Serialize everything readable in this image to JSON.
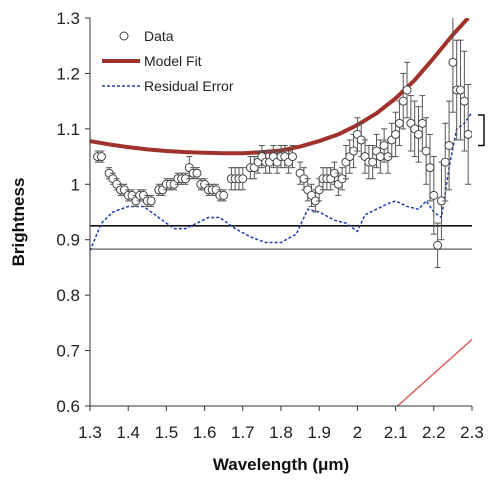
{
  "chart_data": {
    "type": "line",
    "xlabel": "Wavelength (μm)",
    "ylabel": "Brightness",
    "xlim": [
      1.3,
      2.3
    ],
    "ylim": [
      0.6,
      1.3
    ],
    "x_ticks": [
      1.3,
      1.4,
      1.5,
      1.6,
      1.7,
      1.8,
      1.9,
      2.0,
      2.1,
      2.2,
      2.3
    ],
    "x_tick_labels": [
      "1.3",
      "1.4",
      "1.5",
      "1.6",
      "1.7",
      "1.8",
      "1.9",
      "2",
      "2.1",
      "2.2",
      "2.3"
    ],
    "y_ticks": [
      0.6,
      0.7,
      0.8,
      0.9,
      1.0,
      1.1,
      1.2,
      1.3
    ],
    "y_tick_labels": [
      "0.6",
      "0.7",
      "0.8",
      "0.9",
      "1",
      "1.1",
      "1.2",
      "1.3"
    ],
    "grid": false,
    "legend_position": "top-left",
    "legend": [
      {
        "label": "Data",
        "style": "open-circle",
        "color": "#444444"
      },
      {
        "label": "Model Fit",
        "style": "thick-line",
        "color": "#a0322c"
      },
      {
        "label": "Residual Error",
        "style": "dashed-line",
        "color": "#1f3fa8"
      }
    ],
    "series": [
      {
        "name": "Data",
        "color": "#444444",
        "x": [
          1.32,
          1.33,
          1.35,
          1.36,
          1.37,
          1.38,
          1.39,
          1.4,
          1.41,
          1.42,
          1.43,
          1.44,
          1.45,
          1.46,
          1.48,
          1.49,
          1.5,
          1.51,
          1.52,
          1.53,
          1.54,
          1.55,
          1.56,
          1.57,
          1.58,
          1.59,
          1.6,
          1.61,
          1.62,
          1.63,
          1.64,
          1.65,
          1.67,
          1.68,
          1.69,
          1.7,
          1.72,
          1.73,
          1.74,
          1.75,
          1.76,
          1.77,
          1.78,
          1.79,
          1.8,
          1.81,
          1.82,
          1.83,
          1.85,
          1.86,
          1.87,
          1.88,
          1.89,
          1.9,
          1.91,
          1.92,
          1.93,
          1.94,
          1.95,
          1.96,
          1.97,
          1.98,
          1.99,
          2.0,
          2.01,
          2.02,
          2.03,
          2.04,
          2.05,
          2.06,
          2.07,
          2.08,
          2.09,
          2.1,
          2.11,
          2.12,
          2.13,
          2.14,
          2.15,
          2.16,
          2.17,
          2.18,
          2.19,
          2.2,
          2.21,
          2.22,
          2.23,
          2.24,
          2.25,
          2.26,
          2.27,
          2.28,
          2.29
        ],
        "y": [
          1.05,
          1.05,
          1.02,
          1.01,
          1.0,
          0.99,
          0.99,
          0.98,
          0.98,
          0.97,
          0.98,
          0.98,
          0.97,
          0.97,
          0.99,
          0.99,
          1.0,
          1.0,
          1.0,
          1.01,
          1.01,
          1.01,
          1.03,
          1.02,
          1.02,
          1.0,
          1.0,
          0.99,
          0.99,
          0.99,
          0.98,
          0.98,
          1.01,
          1.01,
          1.01,
          1.01,
          1.03,
          1.03,
          1.04,
          1.05,
          1.04,
          1.04,
          1.05,
          1.04,
          1.05,
          1.05,
          1.04,
          1.05,
          1.02,
          1.01,
          0.99,
          0.98,
          0.97,
          0.99,
          1.01,
          1.01,
          1.01,
          1.02,
          1.0,
          1.01,
          1.04,
          1.05,
          1.06,
          1.09,
          1.08,
          1.05,
          1.04,
          1.04,
          1.06,
          1.05,
          1.07,
          1.05,
          1.08,
          1.09,
          1.11,
          1.15,
          1.17,
          1.11,
          1.1,
          1.09,
          1.11,
          1.06,
          1.03,
          0.98,
          0.89,
          0.97,
          1.04,
          1.07,
          1.22,
          1.17,
          1.17,
          1.15,
          1.09
        ],
        "err": [
          0.01,
          0.01,
          0.01,
          0.01,
          0.01,
          0.01,
          0.01,
          0.01,
          0.01,
          0.01,
          0.01,
          0.01,
          0.01,
          0.01,
          0.01,
          0.01,
          0.01,
          0.01,
          0.01,
          0.01,
          0.01,
          0.01,
          0.02,
          0.01,
          0.01,
          0.01,
          0.01,
          0.01,
          0.01,
          0.01,
          0.01,
          0.01,
          0.02,
          0.02,
          0.02,
          0.02,
          0.02,
          0.02,
          0.02,
          0.02,
          0.02,
          0.02,
          0.02,
          0.02,
          0.02,
          0.02,
          0.02,
          0.02,
          0.02,
          0.02,
          0.02,
          0.02,
          0.02,
          0.02,
          0.02,
          0.02,
          0.02,
          0.02,
          0.02,
          0.02,
          0.03,
          0.03,
          0.03,
          0.03,
          0.03,
          0.03,
          0.03,
          0.03,
          0.03,
          0.03,
          0.03,
          0.03,
          0.03,
          0.04,
          0.04,
          0.05,
          0.05,
          0.05,
          0.05,
          0.05,
          0.05,
          0.06,
          0.06,
          0.07,
          0.04,
          0.07,
          0.07,
          0.08,
          0.09,
          0.09,
          0.09,
          0.09,
          0.09
        ]
      },
      {
        "name": "Model Fit",
        "color": "#a0322c",
        "x": [
          1.3,
          1.35,
          1.4,
          1.45,
          1.5,
          1.55,
          1.6,
          1.65,
          1.7,
          1.75,
          1.8,
          1.85,
          1.9,
          1.95,
          2.0,
          2.05,
          2.1,
          2.15,
          2.2,
          2.25,
          2.29
        ],
        "y": [
          1.078,
          1.072,
          1.067,
          1.063,
          1.06,
          1.058,
          1.057,
          1.056,
          1.056,
          1.058,
          1.061,
          1.068,
          1.078,
          1.09,
          1.107,
          1.128,
          1.155,
          1.188,
          1.228,
          1.27,
          1.3
        ]
      },
      {
        "name": "Residual Error",
        "color": "#1f3fa8",
        "x": [
          1.3,
          1.33,
          1.36,
          1.4,
          1.44,
          1.48,
          1.52,
          1.55,
          1.58,
          1.61,
          1.64,
          1.68,
          1.72,
          1.76,
          1.8,
          1.84,
          1.87,
          1.9,
          1.94,
          1.97,
          2.0,
          2.02,
          2.05,
          2.08,
          2.1,
          2.13,
          2.16,
          2.18,
          2.2,
          2.22,
          2.24,
          2.26,
          2.28,
          2.3
        ],
        "y": [
          0.88,
          0.93,
          0.95,
          0.96,
          0.96,
          0.94,
          0.92,
          0.92,
          0.93,
          0.94,
          0.94,
          0.92,
          0.905,
          0.895,
          0.895,
          0.91,
          0.955,
          0.95,
          0.935,
          0.93,
          0.915,
          0.945,
          0.955,
          0.965,
          0.97,
          0.96,
          0.955,
          0.97,
          0.95,
          0.94,
          1.03,
          1.1,
          1.11,
          1.13
        ]
      }
    ],
    "reference_lines": [
      {
        "y": 0.925,
        "color": "#111111"
      },
      {
        "y": 0.883,
        "color": "#777777"
      }
    ],
    "extra_line": {
      "color": "#e06060",
      "x": [
        2.105,
        2.3
      ],
      "y": [
        0.6,
        0.72
      ]
    },
    "annotation_bracket": {
      "y_top": 1.125,
      "y_bottom": 1.07,
      "color": "#111111"
    }
  }
}
